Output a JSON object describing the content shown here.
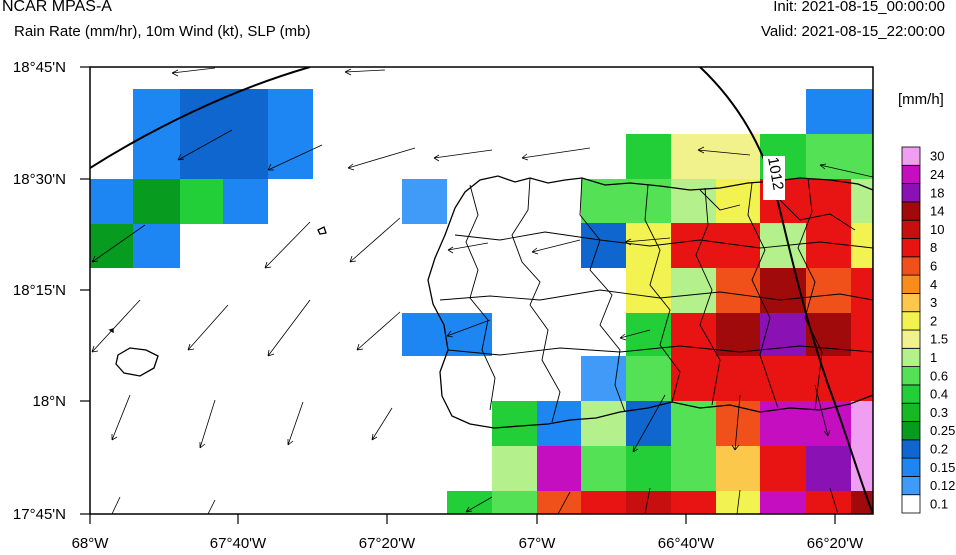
{
  "header": {
    "title": "NCAR MPAS-A",
    "subtitle": "Rain Rate (mm/hr), 10m Wind (kt), SLP (mb)",
    "init": "Init: 2021-08-15_00:00:00",
    "valid": "Valid: 2021-08-15_22:00:00"
  },
  "axes": {
    "lon_ticks": [
      "68°W",
      "67°40'W",
      "67°20'W",
      "67°W",
      "66°40'W",
      "66°20'W"
    ],
    "lat_ticks": [
      "18°45'N",
      "18°30'N",
      "18°15'N",
      "18°N",
      "17°45'N"
    ]
  },
  "colorbar": {
    "unit": "[mm/h]",
    "levels": [
      "0.1",
      "0.12",
      "0.15",
      "0.2",
      "0.25",
      "0.3",
      "0.4",
      "0.6",
      "1",
      "1.5",
      "2",
      "3",
      "4",
      "6",
      "8",
      "10",
      "14",
      "18",
      "24",
      "30"
    ],
    "colors": [
      "#ffffff",
      "#3f9bf7",
      "#1e86f2",
      "#0f66cf",
      "#079b1f",
      "#17b823",
      "#22cf38",
      "#55e155",
      "#b4f08c",
      "#f2f28c",
      "#f2f250",
      "#fbc84c",
      "#fa8c1c",
      "#f0501a",
      "#e81414",
      "#c80f0f",
      "#a00a0a",
      "#8a12b4",
      "#c40ec0",
      "#f09ef2"
    ]
  },
  "isobar": {
    "label": "1012"
  }
}
